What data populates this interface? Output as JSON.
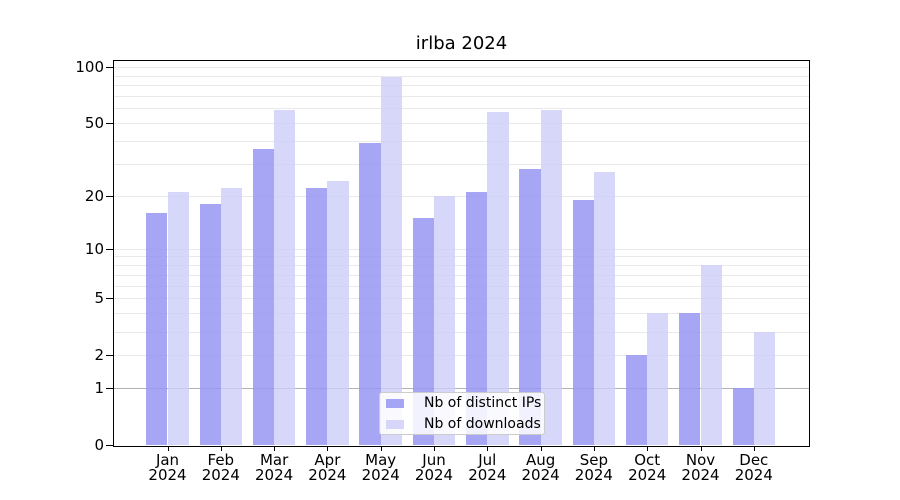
{
  "title": "irlba 2024",
  "chart_data": {
    "type": "bar",
    "title": "irlba 2024",
    "categories": [
      "Jan 2024",
      "Feb 2024",
      "Mar 2024",
      "Apr 2024",
      "May 2024",
      "Jun 2024",
      "Jul 2024",
      "Aug 2024",
      "Sep 2024",
      "Oct 2024",
      "Nov 2024",
      "Dec 2024"
    ],
    "series": [
      {
        "name": "Nb of distinct IPs",
        "color": "#9696f3",
        "opacity": 0.85,
        "values": [
          16,
          18,
          36,
          22,
          39,
          15,
          21,
          28,
          19,
          2,
          4,
          1
        ]
      },
      {
        "name": "Nb of downloads",
        "color": "#cdcdf7",
        "opacity": 0.8,
        "values": [
          21,
          22,
          59,
          24,
          88,
          20,
          57,
          59,
          27,
          4,
          8,
          3
        ]
      }
    ],
    "xlabel": "",
    "ylabel": "",
    "yscale": "log1p",
    "ylim": [
      0,
      100
    ],
    "yticks": [
      0,
      1,
      2,
      5,
      10,
      20,
      50,
      100
    ],
    "grid_values": [
      1,
      2,
      3,
      4,
      5,
      6,
      7,
      8,
      9,
      10,
      20,
      30,
      40,
      50,
      60,
      70,
      80,
      90,
      100
    ],
    "emphasized_grid_value": 1,
    "grid": true,
    "legend_position": "lower center"
  },
  "colors": {
    "grid_minor": "#e9e9ec",
    "grid_emphasis": "#b3b3b3",
    "spine": "#000000",
    "background": "#ffffff"
  }
}
